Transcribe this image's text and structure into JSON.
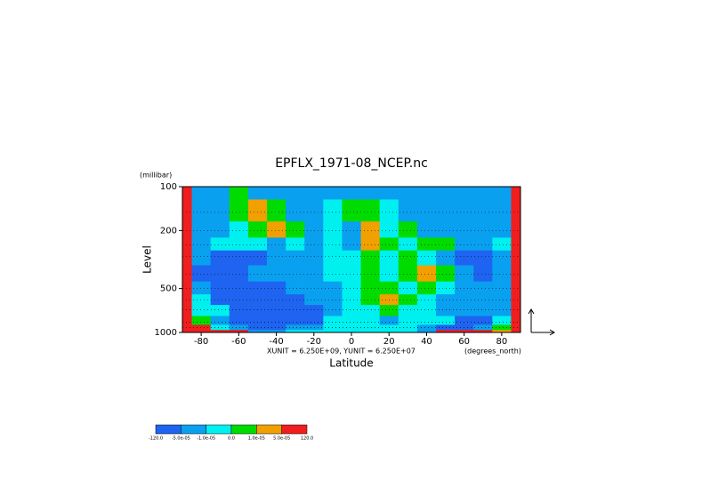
{
  "chart_data": {
    "type": "contour",
    "title": "EPFLX_1971-08_NCEP.nc",
    "ylabel": "Level",
    "yunit": "(millibar)",
    "xlabel": "Latitude",
    "xunit": "(degrees_north)",
    "annotation": "XUNIT = 6.250E+09, YUNIT = 6.250E+07",
    "ylog": true,
    "ylim": [
      1000,
      100
    ],
    "yticks": [
      100,
      200,
      500,
      1000
    ],
    "xlim": [
      -90,
      90
    ],
    "xticks": [
      -80,
      -60,
      -40,
      -20,
      0,
      20,
      40,
      60,
      80
    ],
    "x": [
      -90,
      -80,
      -70,
      -60,
      -50,
      -40,
      -30,
      -20,
      -10,
      0,
      10,
      20,
      30,
      40,
      50,
      60,
      70,
      80,
      90
    ],
    "levels_y": [
      100,
      150,
      200,
      250,
      300,
      400,
      500,
      600,
      700,
      850,
      925,
      1000
    ],
    "colorbar": {
      "levels": [
        {
          "value": -120,
          "label": "-120.0"
        },
        {
          "value": -5e-05,
          "label": "-5.0e-05"
        },
        {
          "value": -1e-05,
          "label": "-1.0e-05"
        },
        {
          "value": 0,
          "label": "0.0"
        },
        {
          "value": 1e-05,
          "label": "1.0e-05"
        },
        {
          "value": 5e-05,
          "label": "5.0e-05"
        },
        {
          "value": 120,
          "label": "120.0"
        }
      ],
      "colors": [
        "#1e64f0",
        "#0aa0f0",
        "#00f0f0",
        "#00dc00",
        "#f0a000",
        "#f01e1e"
      ]
    },
    "values": [
      [
        7e-05,
        -3e-05,
        -3e-05,
        5e-06,
        -3e-05,
        -3e-05,
        -3e-05,
        -3e-05,
        -3e-05,
        -3e-05,
        -3e-05,
        -3e-05,
        -3e-05,
        -3e-05,
        -3e-05,
        -3e-05,
        -3e-05,
        -3e-05,
        7e-05
      ],
      [
        7e-05,
        -3e-05,
        -3e-05,
        5e-06,
        3e-05,
        5e-06,
        -3e-05,
        -3e-05,
        -5e-06,
        5e-06,
        5e-06,
        -5e-06,
        -3e-05,
        -3e-05,
        -3e-05,
        -3e-05,
        -3e-05,
        -3e-05,
        7e-05
      ],
      [
        7e-05,
        -3e-05,
        -3e-05,
        -5e-06,
        5e-06,
        3e-05,
        5e-06,
        -3e-05,
        -5e-06,
        -3e-05,
        3e-05,
        -5e-06,
        5e-06,
        -3e-05,
        -3e-05,
        -3e-05,
        -3e-05,
        -3e-05,
        7e-05
      ],
      [
        7e-05,
        -3e-05,
        -5e-06,
        -5e-06,
        -5e-06,
        -3e-05,
        -5e-06,
        -3e-05,
        -5e-06,
        -3e-05,
        3e-05,
        5e-06,
        -5e-06,
        5e-06,
        5e-06,
        -3e-05,
        -3e-05,
        -5e-06,
        7e-05
      ],
      [
        7e-05,
        -3e-05,
        -7e-05,
        -7e-05,
        -7e-05,
        -3e-05,
        -3e-05,
        -3e-05,
        -5e-06,
        -5e-06,
        5e-06,
        -5e-06,
        5e-06,
        -5e-06,
        -3e-05,
        -7e-05,
        -7e-05,
        -3e-05,
        7e-05
      ],
      [
        7e-05,
        -7e-05,
        -7e-05,
        -7e-05,
        -3e-05,
        -3e-05,
        -3e-05,
        -3e-05,
        -5e-06,
        -5e-06,
        5e-06,
        -5e-06,
        5e-06,
        3e-05,
        5e-06,
        -3e-05,
        -7e-05,
        -3e-05,
        7e-05
      ],
      [
        7e-05,
        -3e-05,
        -7e-05,
        -7e-05,
        -7e-05,
        -7e-05,
        -3e-05,
        -3e-05,
        -3e-05,
        -5e-06,
        5e-06,
        5e-06,
        -5e-06,
        5e-06,
        -5e-06,
        -3e-05,
        -3e-05,
        -3e-05,
        7e-05
      ],
      [
        7e-05,
        -5e-06,
        -7e-05,
        -7e-05,
        -7e-05,
        -7e-05,
        -7e-05,
        -3e-05,
        -3e-05,
        -5e-06,
        5e-06,
        3e-05,
        5e-06,
        -5e-06,
        -3e-05,
        -3e-05,
        -3e-05,
        -3e-05,
        7e-05
      ],
      [
        7e-05,
        -5e-06,
        -5e-06,
        -7e-05,
        -7e-05,
        -7e-05,
        -7e-05,
        -7e-05,
        -3e-05,
        -5e-06,
        -5e-06,
        5e-06,
        -5e-06,
        -5e-06,
        -3e-05,
        -3e-05,
        -3e-05,
        -3e-05,
        7e-05
      ],
      [
        7e-05,
        5e-06,
        -3e-05,
        -7e-05,
        -7e-05,
        -7e-05,
        -7e-05,
        -7e-05,
        -5e-06,
        -5e-06,
        -5e-06,
        -3e-05,
        -5e-06,
        -5e-06,
        -5e-06,
        -7e-05,
        -7e-05,
        -5e-06,
        7e-05
      ],
      [
        7e-05,
        7e-05,
        -5e-06,
        -3e-05,
        -7e-05,
        -7e-05,
        -3e-05,
        -3e-05,
        -5e-06,
        -5e-06,
        -5e-06,
        -5e-06,
        -5e-06,
        -3e-05,
        -7e-05,
        -7e-05,
        -3e-05,
        5e-06,
        7e-05
      ],
      [
        7e-05,
        7e-05,
        7e-05,
        7e-05,
        -3e-05,
        -3e-05,
        -5e-06,
        -5e-06,
        -5e-06,
        -5e-06,
        -5e-06,
        -5e-06,
        -5e-06,
        -3e-05,
        7e-05,
        7e-05,
        7e-05,
        3e-05,
        7e-05
      ]
    ]
  }
}
